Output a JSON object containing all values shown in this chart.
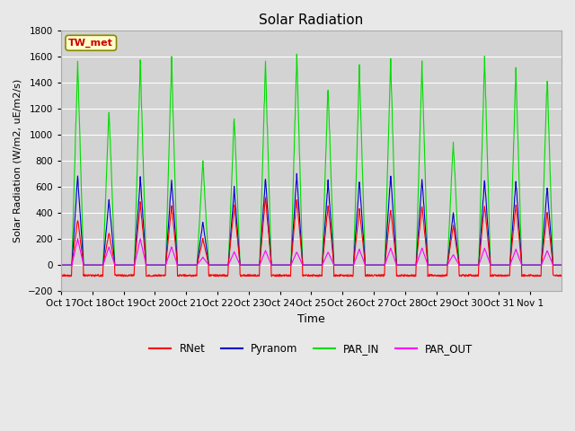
{
  "title": "Solar Radiation",
  "ylabel": "Solar Radiation (W/m2, uE/m2/s)",
  "xlabel": "Time",
  "ylim": [
    -200,
    1800
  ],
  "yticks": [
    -200,
    0,
    200,
    400,
    600,
    800,
    1000,
    1200,
    1400,
    1600,
    1800
  ],
  "xticklabels": [
    "Oct 17",
    "Oct 18",
    "Oct 19",
    "Oct 20",
    "Oct 21",
    "Oct 22",
    "Oct 23",
    "Oct 24",
    "Oct 25",
    "Oct 26",
    "Oct 27",
    "Oct 28",
    "Oct 29",
    "Oct 30",
    "Oct 31",
    "Nov 1"
  ],
  "station_label": "TW_met",
  "colors": {
    "RNet": "#ff0000",
    "Pyranom": "#0000cc",
    "PAR_IN": "#00dd00",
    "PAR_OUT": "#ff00ff"
  },
  "legend_entries": [
    "RNet",
    "Pyranom",
    "PAR_IN",
    "PAR_OUT"
  ],
  "fig_facecolor": "#e8e8e8",
  "ax_facecolor": "#d3d3d3",
  "n_days": 16,
  "points_per_day": 96,
  "par_in_peaks": [
    1570,
    1200,
    1580,
    1580,
    800,
    1150,
    1540,
    1600,
    1380,
    1500,
    1570,
    1530,
    950,
    1590,
    1490,
    1440
  ],
  "pyranom_peaks": [
    680,
    500,
    670,
    660,
    330,
    590,
    670,
    700,
    640,
    650,
    690,
    670,
    400,
    660,
    650,
    600
  ],
  "rnet_peaks": [
    350,
    250,
    470,
    460,
    200,
    450,
    520,
    510,
    460,
    430,
    430,
    460,
    300,
    460,
    460,
    400
  ],
  "par_out_peaks": [
    200,
    140,
    200,
    140,
    60,
    100,
    110,
    100,
    100,
    120,
    130,
    130,
    80,
    130,
    120,
    110
  ],
  "night_rnet": -80,
  "night_noise": 15
}
